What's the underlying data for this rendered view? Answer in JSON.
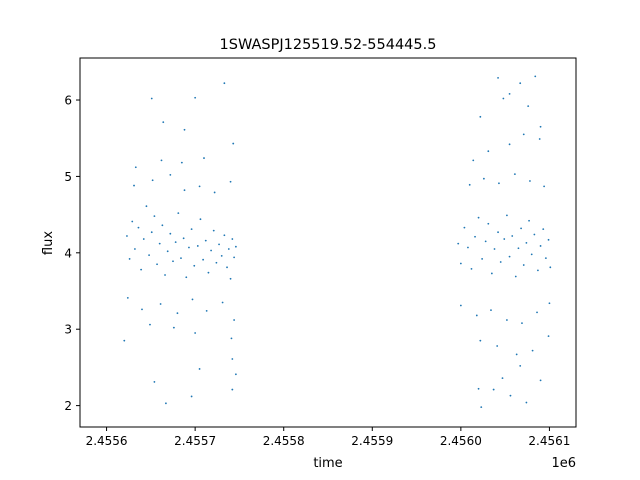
{
  "chart_data": {
    "type": "scatter",
    "title": "1SWASPJ125519.52-554445.5",
    "xlabel": "time",
    "ylabel": "flux",
    "x_offset_label": "1e6",
    "xlim": [
      2455570,
      2456130
    ],
    "ylim": [
      1.72,
      6.55
    ],
    "x_ticks": [
      2455600,
      2455700,
      2455800,
      2455900,
      2456000,
      2456100
    ],
    "x_tick_labels": [
      "2.4556",
      "2.4557",
      "2.4558",
      "2.4559",
      "2.4560",
      "2.4561"
    ],
    "y_ticks": [
      2,
      3,
      4,
      5,
      6
    ],
    "y_tick_labels": [
      "2",
      "3",
      "4",
      "5",
      "6"
    ],
    "grid": false,
    "marker_color": "#1f77b4",
    "series": [
      {
        "values": [
          [
            2455623,
            4.22
          ],
          [
            2455626,
            3.92
          ],
          [
            2455629,
            4.41
          ],
          [
            2455632,
            4.05
          ],
          [
            2455636,
            4.33
          ],
          [
            2455639,
            3.78
          ],
          [
            2455642,
            4.18
          ],
          [
            2455645,
            4.61
          ],
          [
            2455648,
            3.97
          ],
          [
            2455651,
            4.27
          ],
          [
            2455654,
            4.48
          ],
          [
            2455657,
            3.85
          ],
          [
            2455660,
            4.12
          ],
          [
            2455663,
            4.36
          ],
          [
            2455666,
            3.71
          ],
          [
            2455669,
            4.02
          ],
          [
            2455672,
            4.25
          ],
          [
            2455675,
            3.89
          ],
          [
            2455678,
            4.14
          ],
          [
            2455681,
            4.52
          ],
          [
            2455684,
            3.93
          ],
          [
            2455687,
            4.19
          ],
          [
            2455690,
            3.68
          ],
          [
            2455693,
            4.07
          ],
          [
            2455696,
            4.31
          ],
          [
            2455699,
            3.83
          ],
          [
            2455703,
            4.09
          ],
          [
            2455706,
            4.44
          ],
          [
            2455709,
            3.91
          ],
          [
            2455712,
            4.16
          ],
          [
            2455715,
            3.74
          ],
          [
            2455718,
            4.03
          ],
          [
            2455721,
            4.29
          ],
          [
            2455724,
            3.87
          ],
          [
            2455727,
            4.11
          ],
          [
            2455730,
            3.96
          ],
          [
            2455733,
            4.23
          ],
          [
            2455736,
            3.81
          ],
          [
            2455738,
            4.05
          ],
          [
            2455740,
            3.66
          ],
          [
            2455742,
            4.18
          ],
          [
            2455744,
            3.94
          ],
          [
            2455746,
            4.08
          ],
          [
            2455624,
            3.41
          ],
          [
            2455631,
            4.88
          ],
          [
            2455640,
            3.26
          ],
          [
            2455652,
            4.95
          ],
          [
            2455661,
            3.33
          ],
          [
            2455672,
            5.02
          ],
          [
            2455680,
            3.21
          ],
          [
            2455688,
            4.82
          ],
          [
            2455697,
            3.39
          ],
          [
            2455705,
            4.87
          ],
          [
            2455713,
            3.24
          ],
          [
            2455722,
            4.79
          ],
          [
            2455731,
            3.35
          ],
          [
            2455740,
            4.93
          ],
          [
            2455744,
            3.12
          ],
          [
            2455633,
            5.12
          ],
          [
            2455649,
            3.06
          ],
          [
            2455662,
            5.21
          ],
          [
            2455676,
            3.02
          ],
          [
            2455685,
            5.18
          ],
          [
            2455700,
            2.95
          ],
          [
            2455710,
            5.24
          ],
          [
            2455741,
            2.88
          ],
          [
            2455743,
            5.43
          ],
          [
            2455742,
            2.61
          ],
          [
            2455688,
            5.61
          ],
          [
            2455664,
            5.71
          ],
          [
            2455651,
            6.02
          ],
          [
            2455733,
            6.22
          ],
          [
            2455700,
            6.03
          ],
          [
            2455620,
            2.85
          ],
          [
            2455654,
            2.31
          ],
          [
            2455667,
            2.03
          ],
          [
            2455696,
            2.12
          ],
          [
            2455705,
            2.48
          ],
          [
            2455742,
            2.21
          ],
          [
            2455746,
            2.41
          ],
          [
            2455997,
            4.12
          ],
          [
            2456000,
            3.86
          ],
          [
            2456004,
            4.33
          ],
          [
            2456008,
            4.07
          ],
          [
            2456012,
            3.79
          ],
          [
            2456016,
            4.21
          ],
          [
            2456020,
            4.46
          ],
          [
            2456024,
            3.92
          ],
          [
            2456028,
            4.15
          ],
          [
            2456031,
            4.38
          ],
          [
            2456035,
            3.73
          ],
          [
            2456038,
            4.05
          ],
          [
            2456042,
            4.27
          ],
          [
            2456045,
            3.88
          ],
          [
            2456049,
            4.18
          ],
          [
            2456052,
            4.49
          ],
          [
            2456055,
            3.95
          ],
          [
            2456058,
            4.22
          ],
          [
            2456062,
            3.69
          ],
          [
            2456065,
            4.06
          ],
          [
            2456068,
            4.32
          ],
          [
            2456071,
            3.84
          ],
          [
            2456074,
            4.13
          ],
          [
            2456077,
            4.42
          ],
          [
            2456080,
            3.98
          ],
          [
            2456083,
            4.24
          ],
          [
            2456087,
            3.77
          ],
          [
            2456090,
            4.09
          ],
          [
            2456093,
            4.31
          ],
          [
            2456096,
            3.93
          ],
          [
            2456099,
            4.17
          ],
          [
            2456101,
            3.81
          ],
          [
            2456000,
            3.31
          ],
          [
            2456010,
            4.89
          ],
          [
            2456018,
            3.18
          ],
          [
            2456026,
            4.97
          ],
          [
            2456034,
            3.25
          ],
          [
            2456043,
            4.91
          ],
          [
            2456052,
            3.12
          ],
          [
            2456061,
            5.03
          ],
          [
            2456069,
            3.08
          ],
          [
            2456078,
            4.94
          ],
          [
            2456086,
            3.22
          ],
          [
            2456094,
            4.87
          ],
          [
            2456100,
            3.34
          ],
          [
            2456014,
            5.21
          ],
          [
            2456022,
            2.85
          ],
          [
            2456031,
            5.33
          ],
          [
            2456041,
            2.78
          ],
          [
            2456055,
            5.42
          ],
          [
            2456063,
            2.67
          ],
          [
            2456071,
            5.55
          ],
          [
            2456081,
            2.72
          ],
          [
            2456089,
            5.49
          ],
          [
            2456099,
            2.91
          ],
          [
            2456022,
            5.78
          ],
          [
            2456048,
            6.02
          ],
          [
            2456055,
            6.08
          ],
          [
            2456067,
            6.22
          ],
          [
            2456076,
            5.92
          ],
          [
            2456084,
            6.31
          ],
          [
            2456090,
            5.65
          ],
          [
            2456042,
            6.29
          ],
          [
            2456023,
            1.98
          ],
          [
            2456037,
            2.21
          ],
          [
            2456047,
            2.36
          ],
          [
            2456056,
            2.13
          ],
          [
            2456067,
            2.52
          ],
          [
            2456074,
            2.04
          ],
          [
            2456090,
            2.33
          ],
          [
            2456020,
            2.22
          ]
        ]
      }
    ]
  }
}
